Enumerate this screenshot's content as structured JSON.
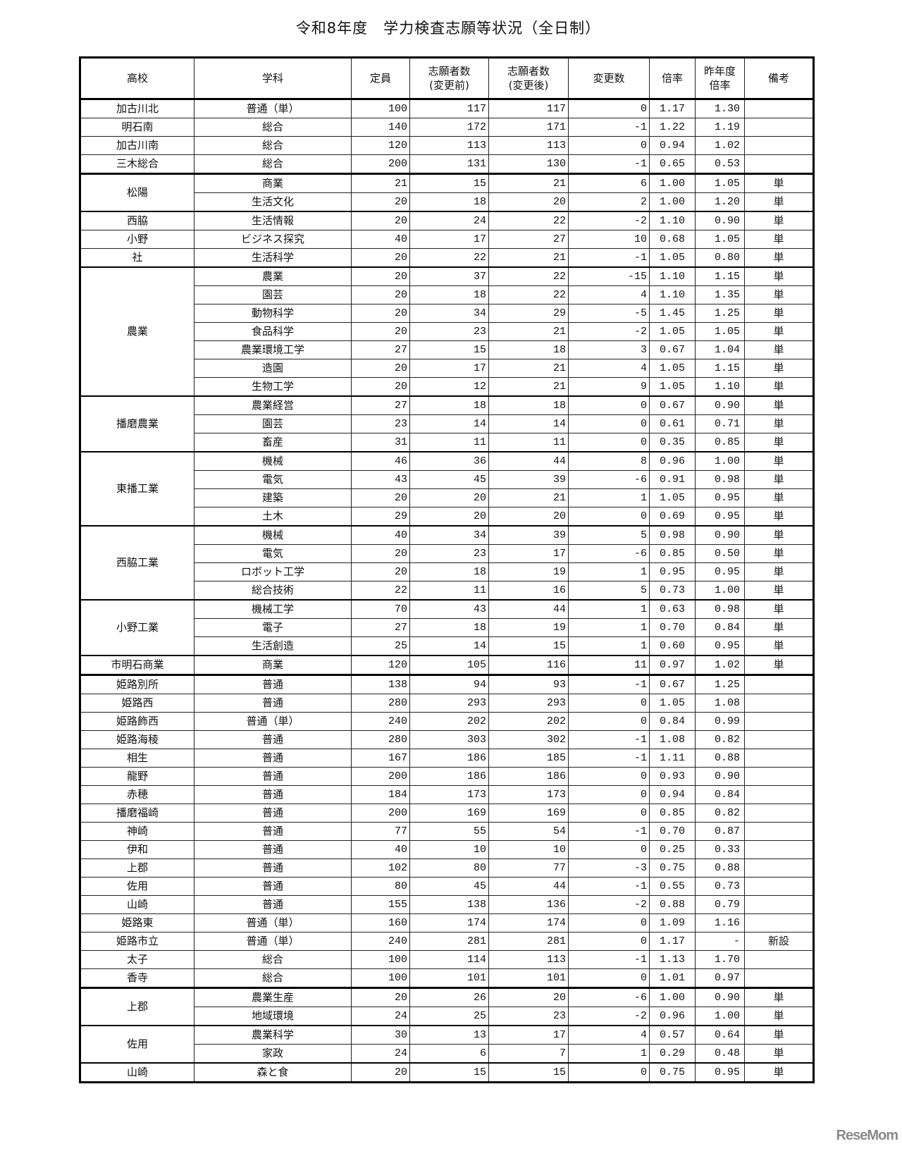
{
  "title": "令和8年度　学力検査志願等状況（全日制）",
  "columns": [
    "高校",
    "学科",
    "定員",
    "志願者数\n(変更前)",
    "志願者数\n(変更後)",
    "変更数",
    "倍率",
    "昨年度\n倍率",
    "備考"
  ],
  "sections": [
    [
      {
        "school": "加古川北",
        "rows": [
          [
            "普通（単）",
            "100",
            "117",
            "117",
            "0",
            "1.17",
            "1.30",
            ""
          ]
        ]
      },
      {
        "school": "明石南",
        "rows": [
          [
            "総合",
            "140",
            "172",
            "171",
            "-1",
            "1.22",
            "1.19",
            ""
          ]
        ]
      },
      {
        "school": "加古川南",
        "rows": [
          [
            "総合",
            "120",
            "113",
            "113",
            "0",
            "0.94",
            "1.02",
            ""
          ]
        ]
      },
      {
        "school": "三木総合",
        "rows": [
          [
            "総合",
            "200",
            "131",
            "130",
            "-1",
            "0.65",
            "0.53",
            ""
          ]
        ]
      }
    ],
    [
      {
        "school": "松陽",
        "rows": [
          [
            "商業",
            "21",
            "15",
            "21",
            "6",
            "1.00",
            "1.05",
            "単"
          ],
          [
            "生活文化",
            "20",
            "18",
            "20",
            "2",
            "1.00",
            "1.20",
            "単"
          ]
        ]
      },
      {
        "school": "西脇",
        "rows": [
          [
            "生活情報",
            "20",
            "24",
            "22",
            "-2",
            "1.10",
            "0.90",
            "単"
          ]
        ]
      },
      {
        "school": "小野",
        "rows": [
          [
            "ビジネス探究",
            "40",
            "17",
            "27",
            "10",
            "0.68",
            "1.05",
            "単"
          ]
        ]
      },
      {
        "school": "社",
        "rows": [
          [
            "生活科学",
            "20",
            "22",
            "21",
            "-1",
            "1.05",
            "0.80",
            "単"
          ]
        ]
      },
      {
        "school": "農業",
        "rows": [
          [
            "農業",
            "20",
            "37",
            "22",
            "-15",
            "1.10",
            "1.15",
            "単"
          ],
          [
            "園芸",
            "20",
            "18",
            "22",
            "4",
            "1.10",
            "1.35",
            "単"
          ],
          [
            "動物科学",
            "20",
            "34",
            "29",
            "-5",
            "1.45",
            "1.25",
            "単"
          ],
          [
            "食品科学",
            "20",
            "23",
            "21",
            "-2",
            "1.05",
            "1.05",
            "単"
          ],
          [
            "農業環境工学",
            "27",
            "15",
            "18",
            "3",
            "0.67",
            "1.04",
            "単"
          ],
          [
            "造園",
            "20",
            "17",
            "21",
            "4",
            "1.05",
            "1.15",
            "単"
          ],
          [
            "生物工学",
            "20",
            "12",
            "21",
            "9",
            "1.05",
            "1.10",
            "単"
          ]
        ]
      },
      {
        "school": "播磨農業",
        "rows": [
          [
            "農業経営",
            "27",
            "18",
            "18",
            "0",
            "0.67",
            "0.90",
            "単"
          ],
          [
            "園芸",
            "23",
            "14",
            "14",
            "0",
            "0.61",
            "0.71",
            "単"
          ],
          [
            "畜産",
            "31",
            "11",
            "11",
            "0",
            "0.35",
            "0.85",
            "単"
          ]
        ]
      },
      {
        "school": "東播工業",
        "rows": [
          [
            "機械",
            "46",
            "36",
            "44",
            "8",
            "0.96",
            "1.00",
            "単"
          ],
          [
            "電気",
            "43",
            "45",
            "39",
            "-6",
            "0.91",
            "0.98",
            "単"
          ],
          [
            "建築",
            "20",
            "20",
            "21",
            "1",
            "1.05",
            "0.95",
            "単"
          ],
          [
            "土木",
            "29",
            "20",
            "20",
            "0",
            "0.69",
            "0.95",
            "単"
          ]
        ]
      },
      {
        "school": "西脇工業",
        "rows": [
          [
            "機械",
            "40",
            "34",
            "39",
            "5",
            "0.98",
            "0.90",
            "単"
          ],
          [
            "電気",
            "20",
            "23",
            "17",
            "-6",
            "0.85",
            "0.50",
            "単"
          ],
          [
            "ロボット工学",
            "20",
            "18",
            "19",
            "1",
            "0.95",
            "0.95",
            "単"
          ],
          [
            "総合技術",
            "22",
            "11",
            "16",
            "5",
            "0.73",
            "1.00",
            "単"
          ]
        ]
      },
      {
        "school": "小野工業",
        "rows": [
          [
            "機械工学",
            "70",
            "43",
            "44",
            "1",
            "0.63",
            "0.98",
            "単"
          ],
          [
            "電子",
            "27",
            "18",
            "19",
            "1",
            "0.70",
            "0.84",
            "単"
          ],
          [
            "生活創造",
            "25",
            "14",
            "15",
            "1",
            "0.60",
            "0.95",
            "単"
          ]
        ]
      },
      {
        "school": "市明石商業",
        "rows": [
          [
            "商業",
            "120",
            "105",
            "116",
            "11",
            "0.97",
            "1.02",
            "単"
          ]
        ]
      }
    ],
    [
      {
        "school": "姫路別所",
        "rows": [
          [
            "普通",
            "138",
            "94",
            "93",
            "-1",
            "0.67",
            "1.25",
            ""
          ]
        ]
      },
      {
        "school": "姫路西",
        "rows": [
          [
            "普通",
            "280",
            "293",
            "293",
            "0",
            "1.05",
            "1.08",
            ""
          ]
        ]
      },
      {
        "school": "姫路飾西",
        "rows": [
          [
            "普通（単）",
            "240",
            "202",
            "202",
            "0",
            "0.84",
            "0.99",
            ""
          ]
        ]
      },
      {
        "school": "姫路海稜",
        "rows": [
          [
            "普通",
            "280",
            "303",
            "302",
            "-1",
            "1.08",
            "0.82",
            ""
          ]
        ]
      },
      {
        "school": "相生",
        "rows": [
          [
            "普通",
            "167",
            "186",
            "185",
            "-1",
            "1.11",
            "0.88",
            ""
          ]
        ]
      },
      {
        "school": "龍野",
        "rows": [
          [
            "普通",
            "200",
            "186",
            "186",
            "0",
            "0.93",
            "0.90",
            ""
          ]
        ]
      },
      {
        "school": "赤穂",
        "rows": [
          [
            "普通",
            "184",
            "173",
            "173",
            "0",
            "0.94",
            "0.84",
            ""
          ]
        ]
      },
      {
        "school": "播磨福崎",
        "rows": [
          [
            "普通",
            "200",
            "169",
            "169",
            "0",
            "0.85",
            "0.82",
            ""
          ]
        ]
      },
      {
        "school": "神崎",
        "rows": [
          [
            "普通",
            "77",
            "55",
            "54",
            "-1",
            "0.70",
            "0.87",
            ""
          ]
        ]
      },
      {
        "school": "伊和",
        "rows": [
          [
            "普通",
            "40",
            "10",
            "10",
            "0",
            "0.25",
            "0.33",
            ""
          ]
        ]
      },
      {
        "school": "上郡",
        "rows": [
          [
            "普通",
            "102",
            "80",
            "77",
            "-3",
            "0.75",
            "0.88",
            ""
          ]
        ]
      },
      {
        "school": "佐用",
        "rows": [
          [
            "普通",
            "80",
            "45",
            "44",
            "-1",
            "0.55",
            "0.73",
            ""
          ]
        ]
      },
      {
        "school": "山崎",
        "rows": [
          [
            "普通",
            "155",
            "138",
            "136",
            "-2",
            "0.88",
            "0.79",
            ""
          ]
        ]
      },
      {
        "school": "姫路東",
        "rows": [
          [
            "普通（単）",
            "160",
            "174",
            "174",
            "0",
            "1.09",
            "1.16",
            ""
          ]
        ]
      },
      {
        "school": "姫路市立",
        "rows": [
          [
            "普通（単）",
            "240",
            "281",
            "281",
            "0",
            "1.17",
            "-",
            "新設"
          ]
        ]
      },
      {
        "school": "太子",
        "rows": [
          [
            "総合",
            "100",
            "114",
            "113",
            "-1",
            "1.13",
            "1.70",
            ""
          ]
        ]
      },
      {
        "school": "香寺",
        "rows": [
          [
            "総合",
            "100",
            "101",
            "101",
            "0",
            "1.01",
            "0.97",
            ""
          ]
        ]
      }
    ],
    [
      {
        "school": "上郡",
        "rows": [
          [
            "農業生産",
            "20",
            "26",
            "20",
            "-6",
            "1.00",
            "0.90",
            "単"
          ],
          [
            "地域環境",
            "24",
            "25",
            "23",
            "-2",
            "0.96",
            "1.00",
            "単"
          ]
        ]
      },
      {
        "school": "佐用",
        "rows": [
          [
            "農業科学",
            "30",
            "13",
            "17",
            "4",
            "0.57",
            "0.64",
            "単"
          ],
          [
            "家政",
            "24",
            "6",
            "7",
            "1",
            "0.29",
            "0.48",
            "単"
          ]
        ]
      },
      {
        "school": "山崎",
        "rows": [
          [
            "森と食",
            "20",
            "15",
            "15",
            "0",
            "0.75",
            "0.95",
            "単"
          ]
        ]
      }
    ]
  ],
  "logo_text": "ReseMom"
}
